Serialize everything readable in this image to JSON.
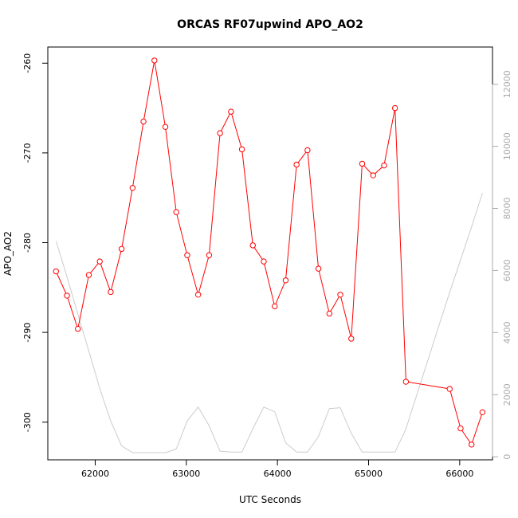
{
  "chart_data": {
    "type": "line",
    "title": "ORCAS RF07upwind APO_AO2",
    "xlabel": "UTC Seconds",
    "ylabel": "APO_AO2",
    "xlim": [
      61480,
      66360
    ],
    "ylim": [
      -304.2,
      -258.2
    ],
    "y2lim": [
      -100,
      13200
    ],
    "x_ticks": [
      62000,
      63000,
      64000,
      65000,
      66000
    ],
    "y_ticks": [
      -300,
      -290,
      -280,
      -270,
      -260
    ],
    "y2_ticks": [
      0,
      2000,
      4000,
      6000,
      8000,
      10000,
      12000
    ],
    "grid": false,
    "series": [
      {
        "color": "#ff0000",
        "axis": "left",
        "x": [
          61570,
          61690,
          61810,
          61930,
          62050,
          62170,
          62290,
          62410,
          62530,
          62650,
          62770,
          62890,
          63010,
          63130,
          63250,
          63370,
          63490,
          63610,
          63730,
          63850,
          63970,
          64090,
          64210,
          64330,
          64450,
          64570,
          64690,
          64810,
          64930,
          65050,
          65170,
          65290,
          65410,
          65890,
          66010,
          66130,
          66250
        ],
        "y": [
          -283.2,
          -285.9,
          -289.6,
          -283.6,
          -282.1,
          -285.5,
          -280.7,
          -273.9,
          -266.5,
          -259.7,
          -267.1,
          -276.6,
          -281.4,
          -285.8,
          -281.4,
          -267.8,
          -265.4,
          -269.6,
          -280.3,
          -282.1,
          -287.1,
          -284.2,
          -271.3,
          -269.7,
          -282.9,
          -287.9,
          -285.8,
          -290.7,
          -271.2,
          -272.5,
          -271.4,
          -265.0,
          -295.5,
          -296.3,
          -300.7,
          -302.5,
          -298.9
        ]
      },
      {
        "color": "#cccccc",
        "axis": "right",
        "x": [
          61570,
          61690,
          61810,
          61930,
          62050,
          62170,
          62290,
          62410,
          62530,
          62650,
          62770,
          62890,
          63010,
          63130,
          63250,
          63370,
          63490,
          63610,
          63730,
          63850,
          63970,
          64090,
          64210,
          64330,
          64450,
          64570,
          64690,
          64810,
          64930,
          65050,
          65170,
          65290,
          65410,
          65530,
          65650,
          65770,
          65890,
          66010,
          66130,
          66250
        ],
        "y": [
          6950,
          5800,
          4600,
          3400,
          2200,
          1150,
          350,
          130,
          130,
          130,
          130,
          250,
          1150,
          1600,
          1000,
          180,
          150,
          150,
          900,
          1600,
          1450,
          450,
          150,
          150,
          650,
          1550,
          1580,
          750,
          150,
          150,
          150,
          150,
          900,
          2000,
          3100,
          4200,
          5300,
          6350,
          7400,
          8500
        ]
      }
    ]
  }
}
